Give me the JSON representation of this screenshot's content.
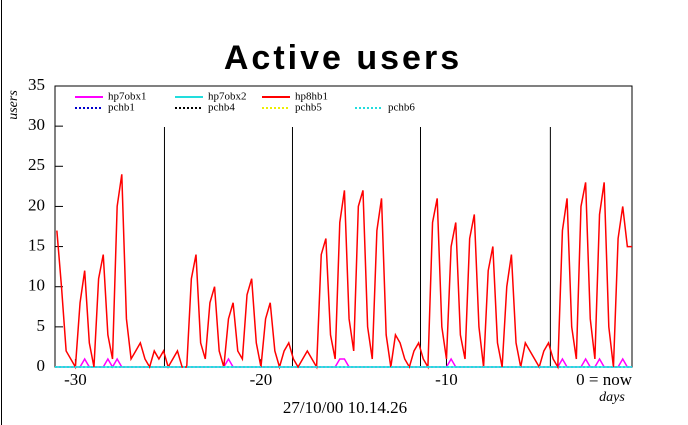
{
  "chart_data": {
    "type": "line",
    "title": "Active users",
    "ylabel": "users",
    "xlabel": "days",
    "timestamp": "27/10/00 10.14.26",
    "xlim": [
      -31.1,
      0
    ],
    "ylim": [
      0,
      35
    ],
    "xticks": [
      -30,
      -20,
      -10,
      {
        "value": 0,
        "label": "0 = now"
      }
    ],
    "yticks": [
      0,
      5,
      10,
      15,
      20,
      25,
      30,
      35
    ],
    "vlines": [
      -25.2,
      -18.3,
      -11.4,
      -4.4
    ],
    "series": [
      {
        "name": "hp7obx1",
        "color": "#ff00ff",
        "style": "solid",
        "x": [
          -31,
          -30.75,
          -30.5,
          -30.25,
          -30,
          -29.75,
          -29.5,
          -29.25,
          -29,
          -28.75,
          -28.5,
          -28.25,
          -28,
          -27.75,
          -27.5,
          -27.25,
          -27,
          -26.75,
          -26.5,
          -26.25,
          -26,
          -25.75,
          -25.5,
          -25.25,
          -25,
          -24.75,
          -24.5,
          -24.25,
          -24,
          -23.75,
          -23.5,
          -23.25,
          -23,
          -22.75,
          -22.5,
          -22.25,
          -22,
          -21.75,
          -21.5,
          -21.25,
          -21,
          -20.75,
          -20.5,
          -20.25,
          -20,
          -19.75,
          -19.5,
          -19.25,
          -19,
          -18.75,
          -18.5,
          -18.25,
          -18,
          -17.75,
          -17.5,
          -17.25,
          -17,
          -16.75,
          -16.5,
          -16.25,
          -16,
          -15.75,
          -15.5,
          -15.25,
          -15,
          -14.75,
          -14.5,
          -14.25,
          -14,
          -13.75,
          -13.5,
          -13.25,
          -13,
          -12.75,
          -12.5,
          -12.25,
          -12,
          -11.75,
          -11.5,
          -11.25,
          -11,
          -10.75,
          -10.5,
          -10.25,
          -10,
          -9.75,
          -9.5,
          -9.25,
          -9,
          -8.75,
          -8.5,
          -8.25,
          -8,
          -7.75,
          -7.5,
          -7.25,
          -7,
          -6.75,
          -6.5,
          -6.25,
          -6,
          -5.75,
          -5.5,
          -5.25,
          -5,
          -4.75,
          -4.5,
          -4.25,
          -4,
          -3.75,
          -3.5,
          -3.25,
          -3,
          -2.75,
          -2.5,
          -2.25,
          -2,
          -1.75,
          -1.5,
          -1.25,
          -1,
          -0.75,
          -0.5,
          -0.25,
          0
        ],
        "values": [
          0,
          0,
          0,
          0,
          0,
          0,
          1,
          0,
          0,
          0,
          0,
          1,
          0,
          1,
          0,
          0,
          0,
          0,
          0,
          0,
          0,
          0,
          0,
          0,
          0,
          0,
          0,
          0,
          0,
          0,
          0,
          0,
          0,
          0,
          0,
          0,
          0,
          1,
          0,
          0,
          0,
          0,
          0,
          0,
          0,
          0,
          0,
          0,
          0,
          0,
          0,
          0,
          0,
          0,
          0,
          0,
          0,
          0,
          0,
          0,
          0,
          1,
          1,
          0,
          0,
          0,
          0,
          0,
          0,
          0,
          0,
          0,
          0,
          0,
          0,
          0,
          0,
          0,
          0,
          0,
          0,
          0,
          0,
          0,
          0,
          1,
          0,
          0,
          0,
          0,
          0,
          0,
          0,
          0,
          0,
          0,
          0,
          0,
          0,
          0,
          0,
          0,
          0,
          0,
          0,
          0,
          0,
          0,
          0,
          1,
          0,
          0,
          0,
          0,
          1,
          0,
          0,
          1,
          0,
          0,
          0,
          0,
          1,
          0,
          0
        ]
      },
      {
        "name": "hp7obx2",
        "color": "#22dddd",
        "style": "solid",
        "x": [
          -31.1,
          0
        ],
        "values": [
          0,
          0
        ]
      },
      {
        "name": "hp8hb1",
        "color": "#ff0000",
        "style": "solid",
        "x": [
          -31,
          -30.75,
          -30.5,
          -30.25,
          -30,
          -29.75,
          -29.5,
          -29.25,
          -29,
          -28.75,
          -28.5,
          -28.25,
          -28,
          -27.75,
          -27.5,
          -27.25,
          -27,
          -26.75,
          -26.5,
          -26.25,
          -26,
          -25.75,
          -25.5,
          -25.25,
          -25,
          -24.75,
          -24.5,
          -24.25,
          -24,
          -23.75,
          -23.5,
          -23.25,
          -23,
          -22.75,
          -22.5,
          -22.25,
          -22,
          -21.75,
          -21.5,
          -21.25,
          -21,
          -20.75,
          -20.5,
          -20.25,
          -20,
          -19.75,
          -19.5,
          -19.25,
          -19,
          -18.75,
          -18.5,
          -18.25,
          -18,
          -17.75,
          -17.5,
          -17.25,
          -17,
          -16.75,
          -16.5,
          -16.25,
          -16,
          -15.75,
          -15.5,
          -15.25,
          -15,
          -14.75,
          -14.5,
          -14.25,
          -14,
          -13.75,
          -13.5,
          -13.25,
          -13,
          -12.75,
          -12.5,
          -12.25,
          -12,
          -11.75,
          -11.5,
          -11.25,
          -11,
          -10.75,
          -10.5,
          -10.25,
          -10,
          -9.75,
          -9.5,
          -9.25,
          -9,
          -8.75,
          -8.5,
          -8.25,
          -8,
          -7.75,
          -7.5,
          -7.25,
          -7,
          -6.75,
          -6.5,
          -6.25,
          -6,
          -5.75,
          -5.5,
          -5.25,
          -5,
          -4.75,
          -4.5,
          -4.25,
          -4,
          -3.75,
          -3.5,
          -3.25,
          -3,
          -2.75,
          -2.5,
          -2.25,
          -2,
          -1.75,
          -1.5,
          -1.25,
          -1,
          -0.75,
          -0.5,
          -0.25,
          0
        ],
        "values": [
          17,
          10,
          2,
          1,
          0,
          8,
          12,
          3,
          0,
          11,
          14,
          4,
          1,
          20,
          24,
          6,
          1,
          2,
          3,
          1,
          0,
          2,
          1,
          2,
          0,
          1,
          2,
          0,
          0,
          11,
          14,
          3,
          1,
          8,
          10,
          2,
          0,
          6,
          8,
          2,
          1,
          9,
          11,
          3,
          0,
          6,
          8,
          2,
          0,
          2,
          3,
          1,
          0,
          1,
          2,
          1,
          0,
          14,
          16,
          4,
          1,
          18,
          22,
          6,
          2,
          20,
          22,
          5,
          1,
          17,
          21,
          4,
          0,
          4,
          3,
          1,
          0,
          2,
          3,
          1,
          0,
          18,
          21,
          5,
          1,
          15,
          18,
          4,
          1,
          16,
          19,
          5,
          0,
          12,
          15,
          3,
          0,
          10,
          14,
          3,
          0,
          3,
          2,
          1,
          0,
          2,
          3,
          1,
          0,
          17,
          21,
          5,
          1,
          20,
          23,
          6,
          1,
          19,
          23,
          5,
          0,
          16,
          20,
          15,
          15
        ]
      },
      {
        "name": "pchb1",
        "color": "#0000cc",
        "style": "dotted",
        "x": [
          -31.1,
          0
        ],
        "values": [
          0,
          0
        ]
      },
      {
        "name": "pchb4",
        "color": "#000000",
        "style": "dotted",
        "x": [
          -31.1,
          0
        ],
        "values": [
          0,
          0
        ]
      },
      {
        "name": "pchb5",
        "color": "#eeee00",
        "style": "dotted",
        "x": [
          -31.1,
          0
        ],
        "values": [
          0,
          0
        ]
      },
      {
        "name": "pchb6",
        "color": "#22dddd",
        "style": "dotted",
        "x": [
          -31.1,
          0
        ],
        "values": [
          0,
          0
        ]
      }
    ]
  }
}
